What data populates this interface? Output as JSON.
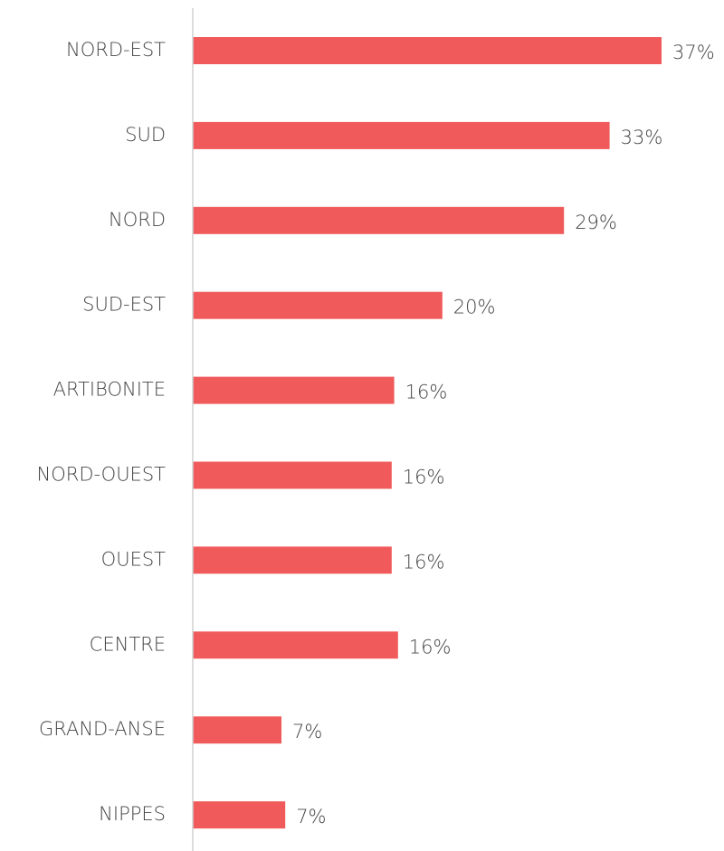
{
  "chart_data": {
    "type": "bar",
    "categories": [
      "NORD-EST",
      "SUD",
      "NORD",
      "SUD-EST",
      "ARTIBONITE",
      "NORD-OUEST",
      "OUEST",
      "CENTRE",
      "GRAND-ANSE",
      "NIPPES"
    ],
    "values": [
      37,
      32.9,
      29.3,
      19.7,
      15.9,
      15.7,
      15.7,
      16.2,
      7,
      7.3
    ],
    "value_labels": [
      "37%",
      "33%",
      "29%",
      "20%",
      "16%",
      "16%",
      "16%",
      "16%",
      "7%",
      "7%"
    ],
    "color": "#f05a5a",
    "xlim": [
      0,
      40
    ]
  }
}
